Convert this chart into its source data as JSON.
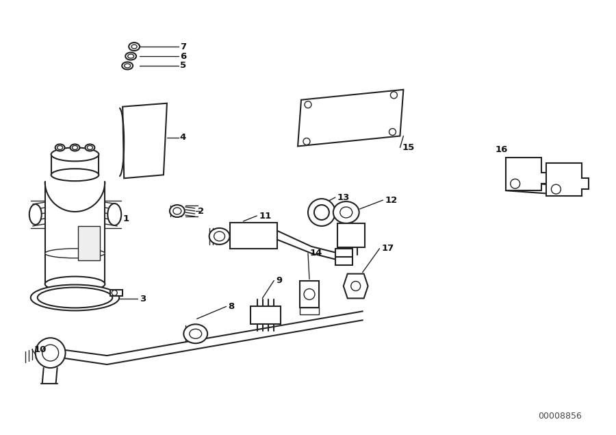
{
  "bg_color": "#ffffff",
  "line_color": "#222222",
  "text_color": "#111111",
  "watermark": "00008856",
  "figsize": [
    9.0,
    6.35
  ],
  "dpi": 100,
  "title_fontsize": 10,
  "label_fontsize": 9.5
}
